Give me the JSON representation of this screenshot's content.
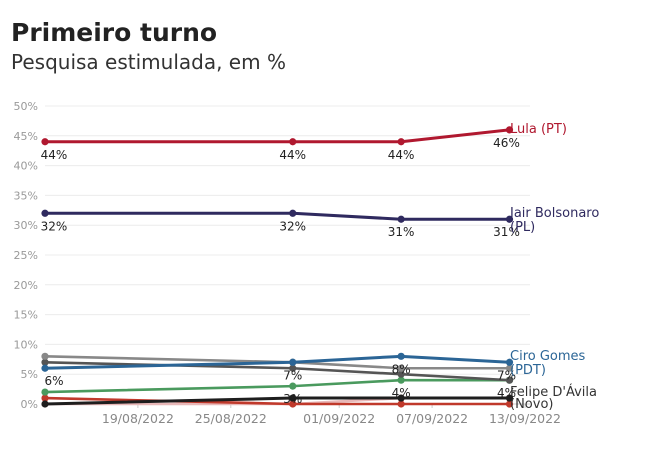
{
  "chart_data": {
    "type": "line",
    "title": "Primeiro turno",
    "subtitle": "Pesquisa estimulada, em %",
    "x": [
      "13/08/2022",
      "29/08/2022",
      "05/09/2022",
      "12/09/2022"
    ],
    "x_ticks": [
      "19/08/2022",
      "25/08/2022",
      "01/09/2022",
      "07/09/2022",
      "13/09/2022"
    ],
    "y_ticks": [
      "0%",
      "5%",
      "10%",
      "15%",
      "20%",
      "25%",
      "30%",
      "35%",
      "40%",
      "45%",
      "50%"
    ],
    "ylim": [
      0,
      50
    ],
    "grid": true,
    "series": [
      {
        "name": "Lula (PT)",
        "label_lines": [
          "Lula (PT)"
        ],
        "color": "#b0182f",
        "values": [
          44,
          44,
          44,
          46
        ],
        "data_labels": [
          "44%",
          "44%",
          "44%",
          "46%"
        ],
        "labeled": true
      },
      {
        "name": "Jair Bolsonaro (PL)",
        "label_lines": [
          "Jair Bolsonaro",
          "(PL)"
        ],
        "color": "#2f2a5f",
        "values": [
          32,
          32,
          31,
          31
        ],
        "data_labels": [
          "32%",
          "32%",
          "31%",
          "31%"
        ],
        "labeled": true
      },
      {
        "name": "Ciro Gomes (PDT)",
        "label_lines": [
          "Ciro Gomes",
          "(PDT)"
        ],
        "color": "#2b6596",
        "values": [
          6,
          7,
          8,
          7
        ],
        "data_labels": [
          "6%",
          "7%",
          "8%",
          "7%"
        ],
        "labeled": true
      },
      {
        "name": "Felipe D'Ávila (Novo)",
        "label_lines": [
          "Felipe D'Ávila",
          "(Novo)"
        ],
        "color": "#1e1e1e",
        "values": [
          0,
          1,
          1,
          1
        ],
        "data_labels": [],
        "labeled": true
      },
      {
        "name": "",
        "label_lines": [],
        "color": "#888888",
        "values": [
          8,
          7,
          6,
          6
        ],
        "data_labels": [],
        "labeled": false
      },
      {
        "name": "",
        "label_lines": [],
        "color": "#555555",
        "values": [
          7,
          6,
          5,
          4
        ],
        "data_labels": [],
        "labeled": false
      },
      {
        "name": "",
        "label_lines": [],
        "color": "#4a9a5e",
        "values": [
          2,
          3,
          4,
          4
        ],
        "data_labels": [
          "",
          "3%",
          "4%",
          "4%"
        ],
        "labeled": false
      },
      {
        "name": "",
        "label_lines": [],
        "color": "#c0392b",
        "values": [
          1,
          0,
          0,
          0
        ],
        "data_labels": [],
        "labeled": false
      },
      {
        "name": "",
        "label_lines": [],
        "color": "#e8b8b8",
        "values": [
          0,
          0,
          1,
          1
        ],
        "data_labels": [],
        "labeled": false
      }
    ]
  }
}
